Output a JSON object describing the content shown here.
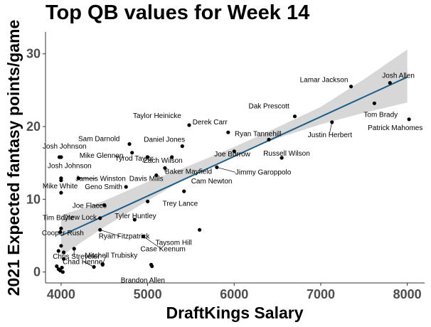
{
  "chart_data": {
    "type": "scatter",
    "title": "Top QB values for Week 14",
    "xlabel": "DraftKings Salary",
    "ylabel": "2021 Expected fantasy points/game",
    "xlim": [
      3820,
      8200
    ],
    "ylim": [
      -1.5,
      33
    ],
    "x_ticks": [
      4000,
      5000,
      6000,
      7000,
      8000
    ],
    "y_ticks": [
      0,
      10,
      20,
      30
    ],
    "grid": false,
    "colors": {
      "points": "#000000",
      "trend_line": "#1f5e88",
      "confidence_band": "#d3d3d3"
    },
    "trend_line": {
      "start": [
        4000,
        5.0
      ],
      "end": [
        8000,
        26.8
      ]
    },
    "confidence_band": {
      "x": [
        4000,
        4500,
        5000,
        5500,
        6000,
        6500,
        7000,
        7500,
        8000
      ],
      "lower": [
        2.2,
        6.2,
        9.8,
        13.3,
        16.0,
        18.4,
        20.3,
        21.9,
        23.3
      ],
      "upper": [
        7.8,
        9.8,
        12.4,
        14.7,
        17.2,
        19.9,
        22.7,
        26.5,
        30.6
      ]
    },
    "points": [
      {
        "name": "Josh Allen",
        "x": 7800,
        "y": 26.0
      },
      {
        "name": "Lamar Jackson",
        "x": 7350,
        "y": 25.5
      },
      {
        "name": "Tom Brady",
        "x": 7620,
        "y": 23.2
      },
      {
        "name": "Patrick Mahomes",
        "x": 8020,
        "y": 21.0
      },
      {
        "name": "Justin Herbert",
        "x": 7130,
        "y": 20.6
      },
      {
        "name": "Dak Prescott",
        "x": 6700,
        "y": 21.4
      },
      {
        "name": "Ryan Tannehill",
        "x": 6400,
        "y": 18.2
      },
      {
        "name": "Russell Wilson",
        "x": 6550,
        "y": 15.7
      },
      {
        "name": "Derek Carr",
        "x": 5930,
        "y": 19.2
      },
      {
        "name": "Taylor Heinicke",
        "x": 5480,
        "y": 20.2
      },
      {
        "name": "Joe Burrow",
        "x": 6000,
        "y": 16.6
      },
      {
        "name": "Jimmy Garoppolo",
        "x": 5800,
        "y": 14.4
      },
      {
        "name": "Daniel Jones",
        "x": 5400,
        "y": 17.3
      },
      {
        "name": "Zach Wilson",
        "x": 5280,
        "y": 15.8
      },
      {
        "name": "Baker Mayfield",
        "x": 5200,
        "y": 14.3
      },
      {
        "name": "Davis Mills",
        "x": 5100,
        "y": 13.3
      },
      {
        "name": "Cam Newton",
        "x": 5420,
        "y": 11.1
      },
      {
        "name": "Tyrod Taylor",
        "x": 5000,
        "y": 15.8
      },
      {
        "name": "Mike Glennon",
        "x": 4820,
        "y": 16.4
      },
      {
        "name": "Sam Darnold",
        "x": 4790,
        "y": 17.6
      },
      {
        "name": "Jameis Winston",
        "x": 4200,
        "y": 12.9
      },
      {
        "name": "Geno Smith",
        "x": 4750,
        "y": 11.7
      },
      {
        "name": "Trey Lance",
        "x": 5000,
        "y": 9.7
      },
      {
        "name": "Joe Flacco",
        "x": 4500,
        "y": 9.2
      },
      {
        "name": "Drew Lock",
        "x": 4450,
        "y": 7.4
      },
      {
        "name": "Tyler Huntley",
        "x": 4850,
        "y": 7.2
      },
      {
        "name": "Ryan Fitzpatrick",
        "x": 4450,
        "y": 5.8
      },
      {
        "name": "Taysom Hill",
        "x": 5600,
        "y": 5.8
      },
      {
        "name": "Case Keenum",
        "x": 4950,
        "y": 4.9
      },
      {
        "name": "Chris Streveler",
        "x": 4150,
        "y": 3.2
      },
      {
        "name": "Cooper Rush",
        "x": 4000,
        "y": 3.6
      },
      {
        "name": "Chad Henne",
        "x": 4380,
        "y": 0.7
      },
      {
        "name": "Mitchell Trubisky",
        "x": 4480,
        "y": 1.1
      },
      {
        "name": "Brandon Allen",
        "x": 5050,
        "y": 0.8
      },
      {
        "name": "Josh Johnson",
        "x": 4000,
        "y": 15.8
      },
      {
        "name": "Josh Johnson",
        "x": 4000,
        "y": 12.9
      },
      {
        "name": "Mike White",
        "x": 4000,
        "y": 10.9
      },
      {
        "name": "Tim Boyle",
        "x": 4000,
        "y": 6.0
      },
      {
        "name": "",
        "x": 3980,
        "y": 15.8
      },
      {
        "name": "",
        "x": 4000,
        "y": 12.6
      },
      {
        "name": "",
        "x": 3990,
        "y": 5.5
      },
      {
        "name": "",
        "x": 3970,
        "y": 2.9
      },
      {
        "name": "",
        "x": 4030,
        "y": 2.7
      },
      {
        "name": "",
        "x": 3950,
        "y": 0.8
      },
      {
        "name": "",
        "x": 4010,
        "y": 0.6
      },
      {
        "name": "",
        "x": 3990,
        "y": 0.2
      },
      {
        "name": "",
        "x": 4020,
        "y": 0.0
      },
      {
        "name": "",
        "x": 3970,
        "y": 0.4
      },
      {
        "name": "",
        "x": 4030,
        "y": 1.8
      },
      {
        "name": "",
        "x": 4480,
        "y": 1.0
      },
      {
        "name": "",
        "x": 5040,
        "y": 1.0
      }
    ]
  }
}
